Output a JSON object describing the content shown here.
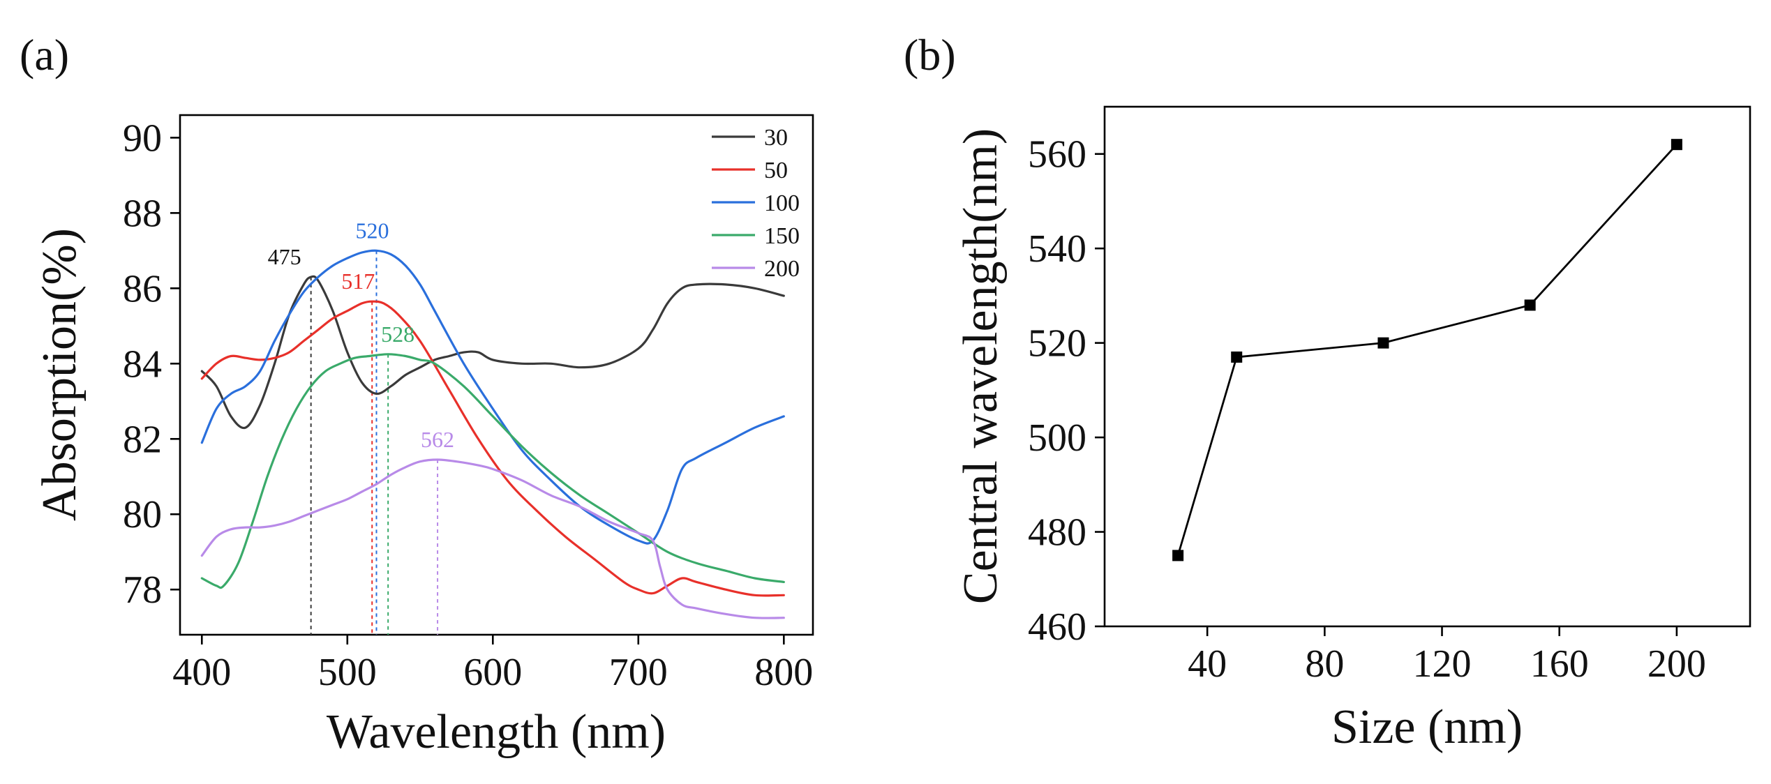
{
  "panels": {
    "a": {
      "label": "(a)"
    },
    "b": {
      "label": "(b)"
    }
  },
  "chart_data": [
    {
      "id": "a",
      "type": "line",
      "title": "",
      "xlabel": "Wavelength (nm)",
      "ylabel": "Absorption(%)",
      "xlim": [
        385,
        820
      ],
      "ylim": [
        76.8,
        90.6
      ],
      "xticks": [
        400,
        500,
        600,
        700,
        800
      ],
      "yticks": [
        78,
        80,
        82,
        84,
        86,
        88,
        90
      ],
      "legend": "top-right",
      "series": [
        {
          "name": "30",
          "color": "#3a3a3a",
          "peak": 475,
          "peak_label": "475",
          "peak_value": 86.3,
          "x": [
            400,
            410,
            420,
            430,
            440,
            450,
            460,
            470,
            475,
            480,
            490,
            500,
            510,
            520,
            530,
            540,
            550,
            560,
            570,
            580,
            590,
            600,
            620,
            640,
            660,
            680,
            700,
            710,
            720,
            730,
            740,
            760,
            780,
            800
          ],
          "y": [
            83.8,
            83.4,
            82.6,
            82.3,
            82.9,
            84.0,
            85.3,
            86.1,
            86.3,
            86.2,
            85.4,
            84.3,
            83.5,
            83.2,
            83.4,
            83.7,
            83.9,
            84.1,
            84.2,
            84.3,
            84.3,
            84.1,
            84.0,
            84.0,
            83.9,
            84.0,
            84.4,
            84.9,
            85.6,
            86.0,
            86.1,
            86.1,
            86.0,
            85.8
          ]
        },
        {
          "name": "50",
          "color": "#e8302a",
          "peak": 517,
          "peak_label": "517",
          "peak_value": 85.65,
          "x": [
            400,
            410,
            420,
            430,
            440,
            450,
            460,
            470,
            480,
            490,
            500,
            510,
            517,
            525,
            535,
            550,
            570,
            590,
            610,
            630,
            650,
            670,
            690,
            700,
            710,
            720,
            730,
            740,
            760,
            780,
            800
          ],
          "y": [
            83.6,
            84.0,
            84.2,
            84.15,
            84.1,
            84.15,
            84.3,
            84.6,
            84.9,
            85.2,
            85.4,
            85.6,
            85.65,
            85.6,
            85.3,
            84.6,
            83.3,
            82.0,
            80.9,
            80.1,
            79.4,
            78.8,
            78.2,
            78.0,
            77.9,
            78.1,
            78.3,
            78.2,
            78.0,
            77.85,
            77.85
          ]
        },
        {
          "name": "100",
          "color": "#2a6fdc",
          "peak": 520,
          "peak_label": "520",
          "peak_value": 87.0,
          "x": [
            400,
            410,
            420,
            430,
            440,
            450,
            460,
            470,
            480,
            490,
            500,
            510,
            520,
            530,
            540,
            550,
            560,
            580,
            600,
            620,
            640,
            660,
            680,
            700,
            710,
            720,
            730,
            740,
            760,
            780,
            800
          ],
          "y": [
            81.9,
            82.8,
            83.2,
            83.4,
            83.8,
            84.6,
            85.3,
            85.9,
            86.3,
            86.6,
            86.8,
            86.95,
            87.0,
            86.9,
            86.6,
            86.1,
            85.4,
            84.0,
            82.8,
            81.7,
            80.9,
            80.2,
            79.7,
            79.3,
            79.3,
            80.1,
            81.2,
            81.5,
            81.9,
            82.3,
            82.6
          ]
        },
        {
          "name": "150",
          "color": "#3aaa6a",
          "peak": 528,
          "peak_label": "528",
          "peak_value": 84.25,
          "x": [
            400,
            410,
            415,
            425,
            435,
            445,
            455,
            465,
            475,
            485,
            495,
            505,
            515,
            528,
            540,
            550,
            560,
            580,
            600,
            620,
            640,
            660,
            680,
            700,
            720,
            740,
            760,
            780,
            800
          ],
          "y": [
            78.3,
            78.1,
            78.1,
            78.7,
            79.8,
            81.0,
            82.0,
            82.8,
            83.4,
            83.8,
            84.0,
            84.15,
            84.2,
            84.25,
            84.2,
            84.1,
            84.0,
            83.4,
            82.6,
            81.8,
            81.1,
            80.5,
            80.0,
            79.5,
            79.0,
            78.7,
            78.5,
            78.3,
            78.2
          ]
        },
        {
          "name": "200",
          "color": "#b88ae8",
          "peak": 562,
          "peak_label": "562",
          "peak_value": 81.45,
          "x": [
            400,
            410,
            420,
            430,
            440,
            450,
            460,
            470,
            480,
            490,
            500,
            510,
            520,
            530,
            540,
            550,
            562,
            575,
            590,
            600,
            620,
            640,
            660,
            680,
            700,
            710,
            715,
            720,
            730,
            740,
            760,
            780,
            800
          ],
          "y": [
            78.9,
            79.4,
            79.6,
            79.65,
            79.65,
            79.7,
            79.8,
            79.95,
            80.1,
            80.25,
            80.4,
            80.6,
            80.8,
            81.05,
            81.25,
            81.4,
            81.45,
            81.4,
            81.3,
            81.2,
            80.9,
            80.5,
            80.2,
            79.8,
            79.5,
            79.3,
            78.6,
            78.0,
            77.6,
            77.5,
            77.35,
            77.25,
            77.25
          ]
        }
      ]
    },
    {
      "id": "b",
      "type": "line",
      "title": "",
      "xlabel": "Size (nm)",
      "ylabel": "Central wavelength(nm)",
      "xlim": [
        5,
        225
      ],
      "ylim": [
        460,
        570
      ],
      "xticks": [
        40,
        80,
        120,
        160,
        200
      ],
      "yticks": [
        460,
        480,
        500,
        520,
        540,
        560
      ],
      "series": [
        {
          "name": "Central wavelength",
          "color": "#000000",
          "marker": "square",
          "x": [
            30,
            50,
            100,
            150,
            200
          ],
          "y": [
            475,
            517,
            520,
            528,
            562
          ]
        }
      ]
    }
  ]
}
